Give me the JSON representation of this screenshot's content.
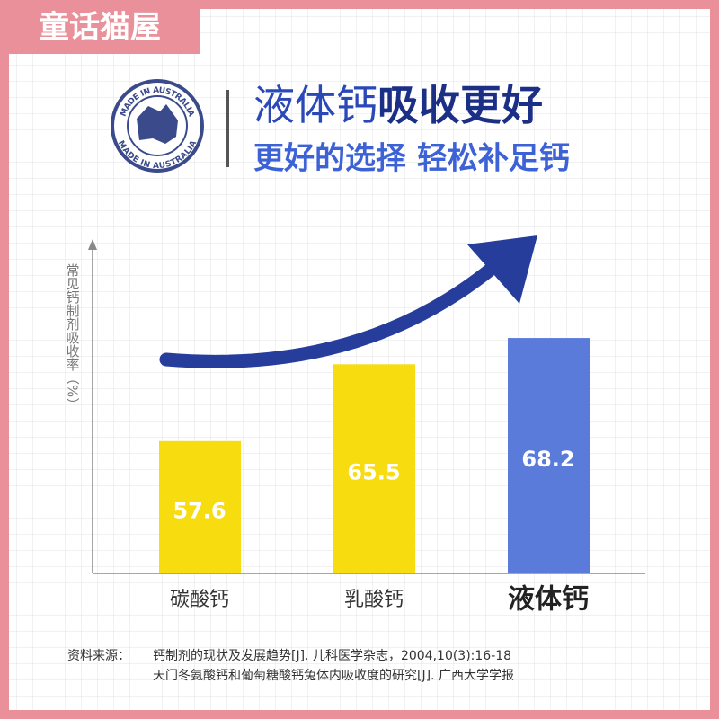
{
  "brand": "童话猫屋",
  "badge": {
    "top": "MADE IN AUSTRALIA",
    "bottom": "MADE IN AUSTRALIA"
  },
  "header": {
    "title_light": "液体钙",
    "title_bold": "吸收更好",
    "subtitle": "更好的选择 轻松补足钙"
  },
  "chart_data": {
    "type": "bar",
    "y_label": "常见钙制剂吸收率（%）",
    "categories": [
      "碳酸钙",
      "乳酸钙",
      "液体钙"
    ],
    "values": [
      57.6,
      65.5,
      68.2
    ],
    "colors": [
      "#f7dc10",
      "#f7dc10",
      "#5b7bdb"
    ],
    "ylim": [
      44,
      78
    ]
  },
  "source": {
    "label": "资料来源：",
    "lines": [
      "钙制剂的现状及发展趋势[J]. 儿科医学杂志，2004,10(3):16-18",
      "天门冬氨酸钙和葡萄糖酸钙兔体内吸收度的研究[J]. 广西大学学报"
    ]
  }
}
